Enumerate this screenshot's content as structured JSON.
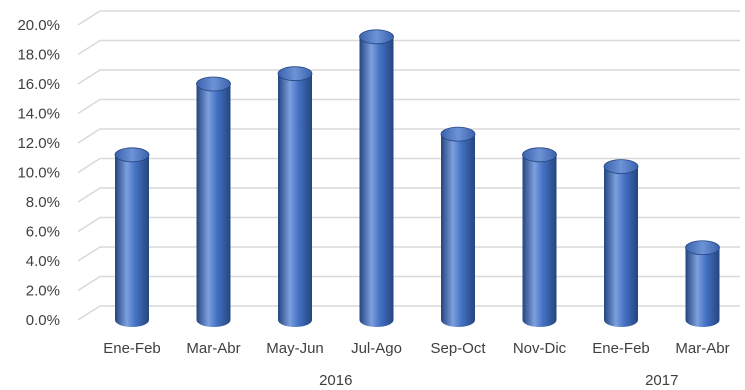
{
  "chart_data": {
    "type": "bar",
    "style": "3d-cylinder",
    "categories": [
      "Ene-Feb",
      "Mar-Abr",
      "May-Jun",
      "Jul-Ago",
      "Sep-Oct",
      "Nov-Dic",
      "Ene-Feb",
      "Mar-Abr"
    ],
    "groups": [
      {
        "label": "2016",
        "categories": [
          "Ene-Feb",
          "Mar-Abr",
          "May-Jun",
          "Jul-Ago",
          "Sep-Oct",
          "Nov-Dic"
        ]
      },
      {
        "label": "2017",
        "categories": [
          "Ene-Feb",
          "Mar-Abr"
        ]
      }
    ],
    "values": [
      11.2,
      16.0,
      16.7,
      19.2,
      12.6,
      11.2,
      10.4,
      4.9
    ],
    "y_ticks": [
      "0.0%",
      "2.0%",
      "4.0%",
      "6.0%",
      "8.0%",
      "10.0%",
      "12.0%",
      "14.0%",
      "16.0%",
      "18.0%",
      "20.0%"
    ],
    "ylim": [
      0,
      20
    ],
    "y_unit": "percent",
    "grid": true,
    "bar_color": "#4472c4",
    "bar_dark": "#24457f",
    "bar_light": "#7da0de",
    "grid_color": "#d9d9d9",
    "text_color": "#404040"
  }
}
